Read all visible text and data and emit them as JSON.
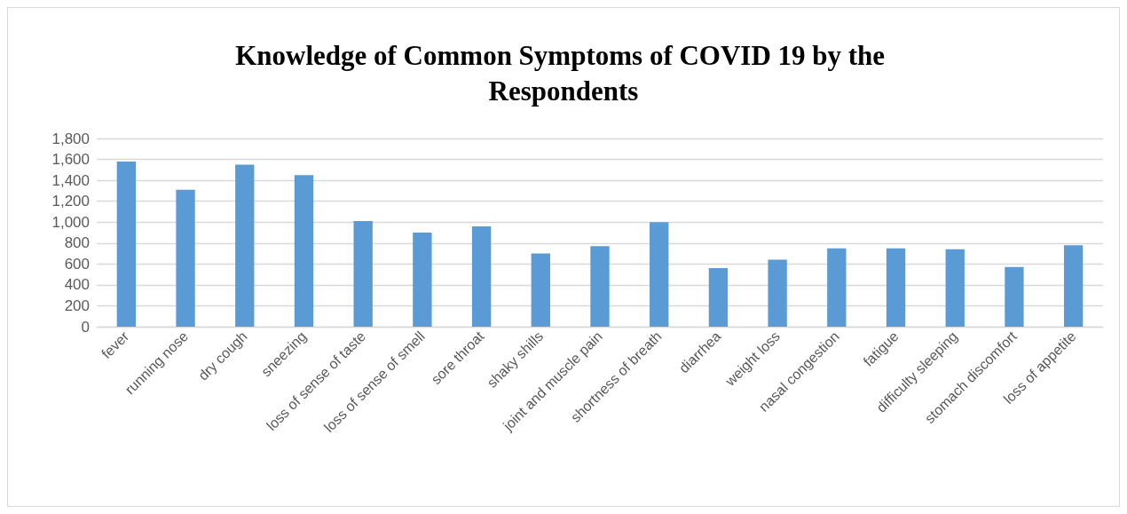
{
  "chart_data": {
    "type": "bar",
    "title": "Knowledge of Common Symptoms of COVID 19 by the Respondents",
    "categories": [
      "fever",
      "running nose",
      "dry cough",
      "sneezing",
      "loss of sense of taste",
      "loss of sense of smell",
      "sore throat",
      "shaky shills",
      "joint and muscle pain",
      "shortness of breath",
      "diarrhea",
      "weight loss",
      "nasal congestion",
      "fatigue",
      "difficulty sleeping",
      "stomach discomfort",
      "loss of appetite"
    ],
    "values": [
      1580,
      1310,
      1550,
      1450,
      1010,
      900,
      960,
      700,
      770,
      1000,
      560,
      640,
      750,
      750,
      740,
      570,
      780
    ],
    "color": "#5b9bd5",
    "ylim": [
      0,
      1800
    ],
    "yticks": [
      0,
      200,
      400,
      600,
      800,
      {
        "value": 1000,
        "label": "1,000"
      },
      {
        "value": 1200,
        "label": "1,200"
      },
      {
        "value": 1400,
        "label": "1,400"
      },
      {
        "value": 1600,
        "label": "1,600"
      },
      {
        "value": 1800,
        "label": "1,800"
      }
    ],
    "grid": "y"
  }
}
